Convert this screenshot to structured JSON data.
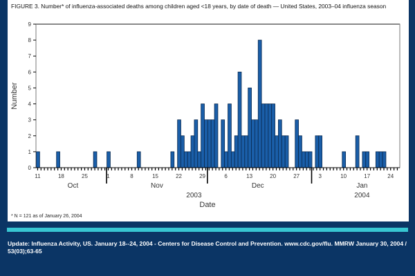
{
  "title": "FIGURE 3. Number* of influenza-associated deaths among children aged <18 years, by date of death — United States, 2003–04 influenza season",
  "footnote": "* N = 121 as of January 26, 2004",
  "source": "Update: Influenza Activity, US. January 18--24, 2004  - Centers for Disease Control and Prevention. www.cdc.gov/flu. MMRW January 30, 2004 / 53(03);63-65",
  "colors": {
    "bar": "#1a5ea8",
    "background": "#0b3565",
    "accent": "#38c6d2"
  },
  "chart_data": {
    "type": "bar",
    "title": "Number of influenza-associated deaths among children aged <18 years, by date of death",
    "xlabel": "Date",
    "ylabel": "Number",
    "ylim": [
      0,
      9
    ],
    "yticks": [
      "0",
      "1",
      "2",
      "3",
      "4",
      "5",
      "6",
      "7",
      "8",
      "9"
    ],
    "x_range": [
      "2003-10-11",
      "2004-01-26"
    ],
    "xtick_labels": [
      "11",
      "18",
      "25",
      "1",
      "8",
      "15",
      "22",
      "29",
      "6",
      "13",
      "20",
      "27",
      "3",
      "10",
      "17",
      "24"
    ],
    "months": [
      "Oct",
      "Nov",
      "Dec",
      "Jan"
    ],
    "years": [
      "2003",
      "2004"
    ],
    "points": [
      [
        "2003-10-11",
        1
      ],
      [
        "2003-10-17",
        1
      ],
      [
        "2003-10-28",
        1
      ],
      [
        "2003-11-01",
        1
      ],
      [
        "2003-11-10",
        1
      ],
      [
        "2003-11-20",
        1
      ],
      [
        "2003-11-22",
        3
      ],
      [
        "2003-11-23",
        2
      ],
      [
        "2003-11-24",
        1
      ],
      [
        "2003-11-25",
        1
      ],
      [
        "2003-11-26",
        2
      ],
      [
        "2003-11-27",
        3
      ],
      [
        "2003-11-28",
        1
      ],
      [
        "2003-11-29",
        4
      ],
      [
        "2003-11-30",
        3
      ],
      [
        "2003-12-01",
        3
      ],
      [
        "2003-12-02",
        3
      ],
      [
        "2003-12-03",
        4
      ],
      [
        "2003-12-05",
        3
      ],
      [
        "2003-12-06",
        1
      ],
      [
        "2003-12-07",
        4
      ],
      [
        "2003-12-08",
        1
      ],
      [
        "2003-12-09",
        2
      ],
      [
        "2003-12-10",
        6
      ],
      [
        "2003-12-11",
        2
      ],
      [
        "2003-12-12",
        2
      ],
      [
        "2003-12-13",
        5
      ],
      [
        "2003-12-14",
        3
      ],
      [
        "2003-12-15",
        3
      ],
      [
        "2003-12-16",
        8
      ],
      [
        "2003-12-17",
        4
      ],
      [
        "2003-12-18",
        4
      ],
      [
        "2003-12-19",
        4
      ],
      [
        "2003-12-20",
        4
      ],
      [
        "2003-12-21",
        2
      ],
      [
        "2003-12-22",
        3
      ],
      [
        "2003-12-23",
        2
      ],
      [
        "2003-12-24",
        2
      ],
      [
        "2003-12-27",
        3
      ],
      [
        "2003-12-28",
        2
      ],
      [
        "2003-12-29",
        1
      ],
      [
        "2003-12-30",
        1
      ],
      [
        "2003-12-31",
        1
      ],
      [
        "2004-01-02",
        2
      ],
      [
        "2004-01-03",
        2
      ],
      [
        "2004-01-10",
        1
      ],
      [
        "2004-01-14",
        2
      ],
      [
        "2004-01-16",
        1
      ],
      [
        "2004-01-17",
        1
      ],
      [
        "2004-01-20",
        1
      ],
      [
        "2004-01-21",
        1
      ],
      [
        "2004-01-22",
        1
      ]
    ]
  }
}
